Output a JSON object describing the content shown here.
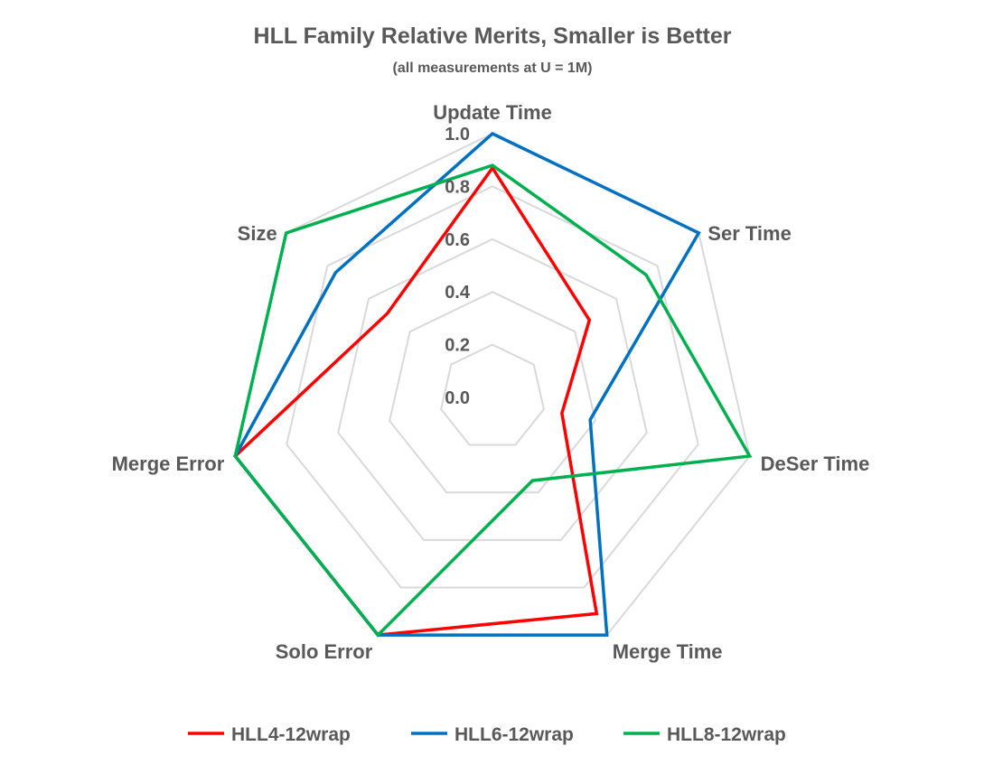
{
  "chart_data": {
    "type": "radar",
    "title": "HLL Family Relative Merits, Smaller is Better",
    "subtitle": "(all measurements at U = 1M)",
    "axes": [
      "Update Time",
      "Ser Time",
      "DeSer Time",
      "Merge Time",
      "Solo Error",
      "Merge Error",
      "Size"
    ],
    "rlim": [
      0,
      1.0
    ],
    "ticks": [
      "0.0",
      "0.2",
      "0.4",
      "0.6",
      "0.8",
      "1.0"
    ],
    "tick_values": [
      0,
      0.2,
      0.4,
      0.6,
      0.8,
      1.0
    ],
    "grid": true,
    "legend_position": "bottom",
    "series": [
      {
        "name": "HLL4-12wrap",
        "color": "#FF0000",
        "values": [
          0.87,
          0.47,
          0.27,
          0.91,
          1.0,
          1.0,
          0.51
        ]
      },
      {
        "name": "HLL6-12wrap",
        "color": "#0070C0",
        "values": [
          1.0,
          1.0,
          0.38,
          1.0,
          1.0,
          1.0,
          0.76
        ]
      },
      {
        "name": "HLL8-12wrap",
        "color": "#00B050",
        "values": [
          0.88,
          0.745,
          1.0,
          0.35,
          1.0,
          1.0,
          1.0
        ]
      }
    ]
  }
}
